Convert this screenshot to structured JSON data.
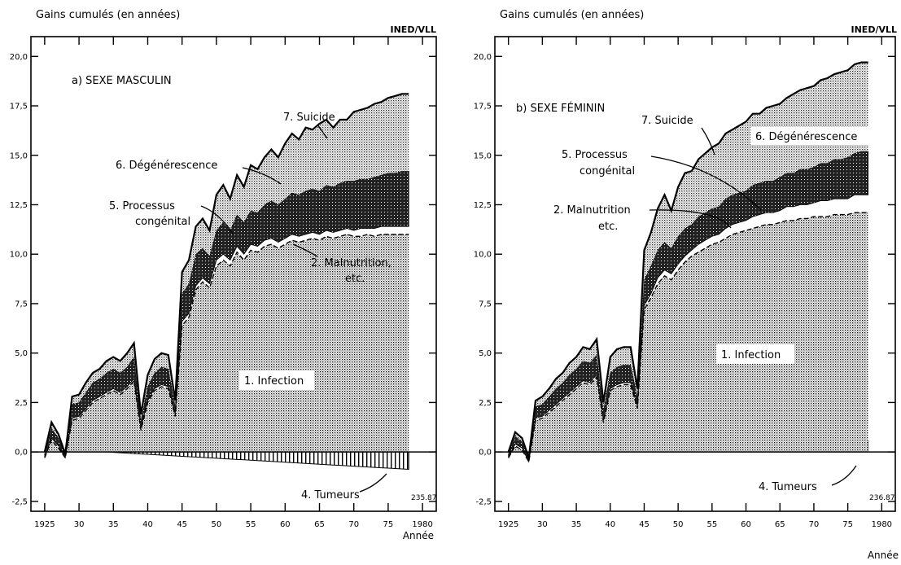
{
  "chart_data": [
    {
      "type": "area",
      "panel_label": "a) SEXE MASCULIN",
      "ylabel": "Gains cumulés (en années)",
      "source": "INED/VLL",
      "code": "235.87",
      "xlabel": "Année",
      "xlim": [
        1923,
        1982
      ],
      "ylim": [
        -3.0,
        21.0
      ],
      "x_ticks": [
        1925,
        1930,
        1935,
        1940,
        1945,
        1950,
        1955,
        1960,
        1965,
        1970,
        1975,
        1980
      ],
      "x_tick_labels": [
        "1925",
        "30",
        "35",
        "40",
        "45",
        "50",
        "55",
        "60",
        "65",
        "70",
        "75",
        "1980"
      ],
      "y_ticks": [
        -2.5,
        0.0,
        2.5,
        5.0,
        7.5,
        10.0,
        12.5,
        15.0,
        17.5,
        20.0
      ],
      "y_tick_labels": [
        "-2,5",
        "0,0",
        "2,5",
        "5,0",
        "7,5",
        "10,0",
        "12,5",
        "15,0",
        "17,5",
        "20,0"
      ],
      "x": [
        1925,
        1926,
        1927,
        1928,
        1929,
        1930,
        1931,
        1932,
        1933,
        1934,
        1935,
        1936,
        1937,
        1938,
        1939,
        1940,
        1941,
        1942,
        1943,
        1944,
        1945,
        1946,
        1947,
        1948,
        1949,
        1950,
        1951,
        1952,
        1953,
        1954,
        1955,
        1956,
        1957,
        1958,
        1959,
        1960,
        1961,
        1962,
        1963,
        1964,
        1965,
        1966,
        1967,
        1968,
        1969,
        1970,
        1971,
        1972,
        1973,
        1974,
        1975,
        1976,
        1977,
        1978
      ],
      "series": [
        {
          "name": "1. Infection",
          "role": "base",
          "values": [
            -0.3,
            0.6,
            0.2,
            -0.3,
            1.6,
            1.7,
            2.1,
            2.5,
            2.7,
            2.9,
            3.1,
            2.9,
            3.2,
            3.6,
            1.1,
            2.5,
            3.1,
            3.3,
            3.2,
            1.8,
            6.4,
            6.8,
            8.2,
            8.6,
            8.3,
            9.4,
            9.7,
            9.4,
            10.1,
            9.7,
            10.2,
            10.1,
            10.4,
            10.5,
            10.3,
            10.5,
            10.7,
            10.6,
            10.7,
            10.8,
            10.7,
            10.9,
            10.8,
            10.9,
            11.0,
            10.9,
            10.9,
            11.0,
            10.9,
            11.0,
            11.0,
            11.0,
            11.0,
            11.0
          ]
        },
        {
          "name": "2. Malnutrition, etc.",
          "values": [
            0.0,
            0.1,
            0.1,
            0.0,
            0.1,
            0.1,
            0.1,
            0.1,
            0.1,
            0.1,
            0.1,
            0.1,
            0.1,
            0.1,
            0.1,
            0.1,
            0.1,
            0.1,
            0.1,
            0.1,
            0.2,
            0.2,
            0.2,
            0.2,
            0.2,
            0.3,
            0.3,
            0.3,
            0.3,
            0.3,
            0.3,
            0.3,
            0.3,
            0.3,
            0.3,
            0.3,
            0.3,
            0.3,
            0.3,
            0.3,
            0.3,
            0.3,
            0.3,
            0.3,
            0.3,
            0.3,
            0.4,
            0.3,
            0.4,
            0.4,
            0.4,
            0.4,
            0.4,
            0.4
          ]
        },
        {
          "name": "5. Processus congénital",
          "values": [
            0.2,
            0.5,
            0.4,
            0.2,
            0.7,
            0.7,
            0.8,
            0.9,
            0.9,
            1.0,
            1.0,
            1.0,
            1.0,
            1.1,
            0.4,
            0.7,
            0.8,
            0.9,
            0.9,
            0.4,
            1.4,
            1.5,
            1.6,
            1.5,
            1.4,
            1.5,
            1.6,
            1.5,
            1.6,
            1.6,
            1.7,
            1.7,
            1.8,
            1.9,
            1.9,
            2.0,
            2.1,
            2.1,
            2.2,
            2.2,
            2.2,
            2.3,
            2.3,
            2.4,
            2.4,
            2.5,
            2.5,
            2.5,
            2.6,
            2.6,
            2.7,
            2.7,
            2.8,
            2.8
          ]
        },
        {
          "name": "6. Dégénérescence",
          "values": [
            0.1,
            0.3,
            0.2,
            0.0,
            0.4,
            0.4,
            0.5,
            0.5,
            0.5,
            0.6,
            0.6,
            0.6,
            0.7,
            0.7,
            0.3,
            0.6,
            0.7,
            0.7,
            0.7,
            0.3,
            1.1,
            1.2,
            1.4,
            1.5,
            1.3,
            1.8,
            1.9,
            1.6,
            2.0,
            1.8,
            2.3,
            2.2,
            2.4,
            2.6,
            2.4,
            2.8,
            3.0,
            2.8,
            3.2,
            3.0,
            3.4,
            3.3,
            3.0,
            3.2,
            3.1,
            3.5,
            3.5,
            3.6,
            3.7,
            3.7,
            3.8,
            3.9,
            3.9,
            3.9
          ]
        },
        {
          "name": "7. Suicide",
          "values": [
            0.0,
            0.0,
            0.0,
            0.0,
            0.0,
            0.0,
            0.0,
            0.0,
            0.0,
            0.0,
            0.0,
            0.0,
            0.0,
            0.0,
            0.0,
            0.0,
            0.0,
            0.0,
            0.0,
            0.0,
            0.0,
            0.0,
            0.0,
            0.0,
            0.0,
            0.0,
            0.0,
            0.0,
            0.0,
            0.0,
            0.0,
            0.0,
            0.0,
            0.0,
            0.0,
            0.0,
            0.0,
            0.0,
            0.0,
            0.0,
            0.0,
            0.0,
            0.0,
            0.0,
            0.0,
            0.0,
            0.0,
            0.0,
            0.0,
            0.0,
            0.0,
            0.0,
            0.0,
            0.0
          ]
        },
        {
          "name": "4. Tumeurs",
          "role": "negative",
          "values": [
            0.0,
            0.0,
            0.0,
            0.0,
            0.0,
            0.0,
            0.0,
            0.0,
            0.0,
            0.0,
            -0.02,
            -0.04,
            -0.06,
            -0.08,
            -0.1,
            -0.12,
            -0.14,
            -0.16,
            -0.18,
            -0.2,
            -0.22,
            -0.24,
            -0.26,
            -0.28,
            -0.3,
            -0.32,
            -0.34,
            -0.36,
            -0.38,
            -0.4,
            -0.42,
            -0.44,
            -0.46,
            -0.48,
            -0.5,
            -0.52,
            -0.54,
            -0.56,
            -0.58,
            -0.6,
            -0.62,
            -0.64,
            -0.66,
            -0.68,
            -0.7,
            -0.72,
            -0.74,
            -0.76,
            -0.78,
            -0.8,
            -0.82,
            -0.84,
            -0.86,
            -0.88
          ]
        }
      ],
      "annotations": [
        "7. Suicide",
        "6. Dégénérescence",
        "5. Processus",
        "congénital",
        "2. Malnutrition,",
        "etc.",
        "1. Infection",
        "4. Tumeurs"
      ]
    },
    {
      "type": "area",
      "panel_label": "b) SEXE FÉMININ",
      "ylabel": "Gains cumulés (en années)",
      "source": "INED/VLL",
      "code": "236.87",
      "xlabel": "Année",
      "xlim": [
        1923,
        1982
      ],
      "ylim": [
        -3.0,
        21.0
      ],
      "x_ticks": [
        1925,
        1930,
        1935,
        1940,
        1945,
        1950,
        1955,
        1960,
        1965,
        1970,
        1975,
        1980
      ],
      "x_tick_labels": [
        "1925",
        "30",
        "35",
        "40",
        "45",
        "50",
        "55",
        "60",
        "65",
        "70",
        "75",
        "1980"
      ],
      "y_ticks": [
        -2.5,
        0.0,
        2.5,
        5.0,
        7.5,
        10.0,
        12.5,
        15.0,
        17.5,
        20.0
      ],
      "y_tick_labels": [
        "-2,5",
        "0,0",
        "2,5",
        "5,0",
        "7,5",
        "10,0",
        "12,5",
        "15,0",
        "17,5",
        "20,0"
      ],
      "x": [
        1925,
        1926,
        1927,
        1928,
        1929,
        1930,
        1931,
        1932,
        1933,
        1934,
        1935,
        1936,
        1937,
        1938,
        1939,
        1940,
        1941,
        1942,
        1943,
        1944,
        1945,
        1946,
        1947,
        1948,
        1949,
        1950,
        1951,
        1952,
        1953,
        1954,
        1955,
        1956,
        1957,
        1958,
        1959,
        1960,
        1961,
        1962,
        1963,
        1964,
        1965,
        1966,
        1967,
        1968,
        1969,
        1970,
        1971,
        1972,
        1973,
        1974,
        1975,
        1976,
        1977,
        1978
      ],
      "series": [
        {
          "name": "1. Infection",
          "role": "base",
          "values": [
            -0.3,
            0.3,
            0.1,
            -0.5,
            1.6,
            1.7,
            2.0,
            2.3,
            2.6,
            2.9,
            3.2,
            3.5,
            3.4,
            3.8,
            1.5,
            3.1,
            3.3,
            3.4,
            3.4,
            2.2,
            7.2,
            7.8,
            8.5,
            8.9,
            8.7,
            9.2,
            9.6,
            9.9,
            10.1,
            10.3,
            10.5,
            10.6,
            10.8,
            11.0,
            11.1,
            11.2,
            11.3,
            11.4,
            11.5,
            11.5,
            11.6,
            11.7,
            11.7,
            11.8,
            11.8,
            11.9,
            11.9,
            11.9,
            12.0,
            12.0,
            12.0,
            12.1,
            12.1,
            12.1
          ]
        },
        {
          "name": "2. Malnutrition, etc.",
          "values": [
            0.0,
            0.1,
            0.1,
            0.0,
            0.1,
            0.1,
            0.1,
            0.1,
            0.1,
            0.1,
            0.1,
            0.1,
            0.1,
            0.1,
            0.1,
            0.1,
            0.1,
            0.1,
            0.1,
            0.1,
            0.2,
            0.2,
            0.3,
            0.3,
            0.3,
            0.3,
            0.3,
            0.3,
            0.4,
            0.4,
            0.4,
            0.4,
            0.5,
            0.5,
            0.5,
            0.5,
            0.6,
            0.6,
            0.6,
            0.6,
            0.6,
            0.7,
            0.7,
            0.7,
            0.7,
            0.7,
            0.8,
            0.8,
            0.8,
            0.8,
            0.8,
            0.9,
            0.9,
            0.9
          ]
        },
        {
          "name": "5. Processus congénital",
          "values": [
            0.2,
            0.4,
            0.3,
            0.2,
            0.6,
            0.6,
            0.7,
            0.8,
            0.8,
            0.9,
            0.9,
            1.0,
            1.0,
            1.0,
            0.5,
            0.8,
            0.9,
            0.9,
            0.9,
            0.5,
            1.3,
            1.4,
            1.4,
            1.4,
            1.3,
            1.4,
            1.4,
            1.3,
            1.4,
            1.4,
            1.4,
            1.4,
            1.5,
            1.5,
            1.5,
            1.5,
            1.6,
            1.6,
            1.6,
            1.6,
            1.7,
            1.7,
            1.7,
            1.8,
            1.8,
            1.8,
            1.9,
            1.9,
            2.0,
            2.0,
            2.1,
            2.1,
            2.2,
            2.2
          ]
        },
        {
          "name": "6. Dégénérescence",
          "values": [
            0.1,
            0.2,
            0.2,
            0.0,
            0.3,
            0.4,
            0.4,
            0.5,
            0.5,
            0.6,
            0.6,
            0.7,
            0.7,
            0.8,
            0.4,
            0.8,
            0.9,
            0.9,
            0.9,
            0.4,
            1.5,
            1.7,
            2.1,
            2.4,
            1.9,
            2.5,
            2.8,
            2.7,
            2.9,
            3.0,
            3.1,
            3.2,
            3.3,
            3.3,
            3.4,
            3.5,
            3.6,
            3.5,
            3.7,
            3.8,
            3.7,
            3.8,
            4.0,
            4.0,
            4.1,
            4.1,
            4.2,
            4.3,
            4.3,
            4.4,
            4.4,
            4.5,
            4.5,
            4.5
          ]
        },
        {
          "name": "7. Suicide",
          "values": [
            0.0,
            0.0,
            0.0,
            0.0,
            0.0,
            0.0,
            0.0,
            0.0,
            0.0,
            0.0,
            0.0,
            0.0,
            0.0,
            0.0,
            0.0,
            0.0,
            0.0,
            0.0,
            0.0,
            0.0,
            0.0,
            0.0,
            0.0,
            0.0,
            0.0,
            0.0,
            0.0,
            0.0,
            0.0,
            0.0,
            0.0,
            0.0,
            0.0,
            0.0,
            0.0,
            0.0,
            0.0,
            0.0,
            0.0,
            0.0,
            0.0,
            0.0,
            0.0,
            0.0,
            0.0,
            0.0,
            0.0,
            0.0,
            0.0,
            0.0,
            0.0,
            0.0,
            0.0,
            0.0
          ]
        },
        {
          "name": "4. Tumeurs",
          "role": "positive-below",
          "values": [
            0.0,
            0.0,
            0.0,
            0.0,
            0.0,
            0.0,
            0.0,
            0.0,
            0.0,
            0.0,
            0.0,
            0.0,
            0.0,
            0.0,
            0.0,
            0.0,
            0.0,
            0.0,
            0.0,
            0.0,
            0.01,
            0.02,
            0.03,
            0.05,
            0.06,
            0.08,
            0.09,
            0.1,
            0.11,
            0.13,
            0.14,
            0.15,
            0.17,
            0.18,
            0.2,
            0.21,
            0.23,
            0.25,
            0.26,
            0.28,
            0.3,
            0.32,
            0.34,
            0.36,
            0.38,
            0.4,
            0.42,
            0.44,
            0.46,
            0.48,
            0.5,
            0.52,
            0.54,
            0.56
          ]
        }
      ],
      "annotations": [
        "7. Suicide",
        "6. Dégénérescence",
        "5. Processus",
        "congénital",
        "2. Malnutrition",
        "etc.",
        "1. Infection",
        "4. Tumeurs"
      ]
    }
  ]
}
